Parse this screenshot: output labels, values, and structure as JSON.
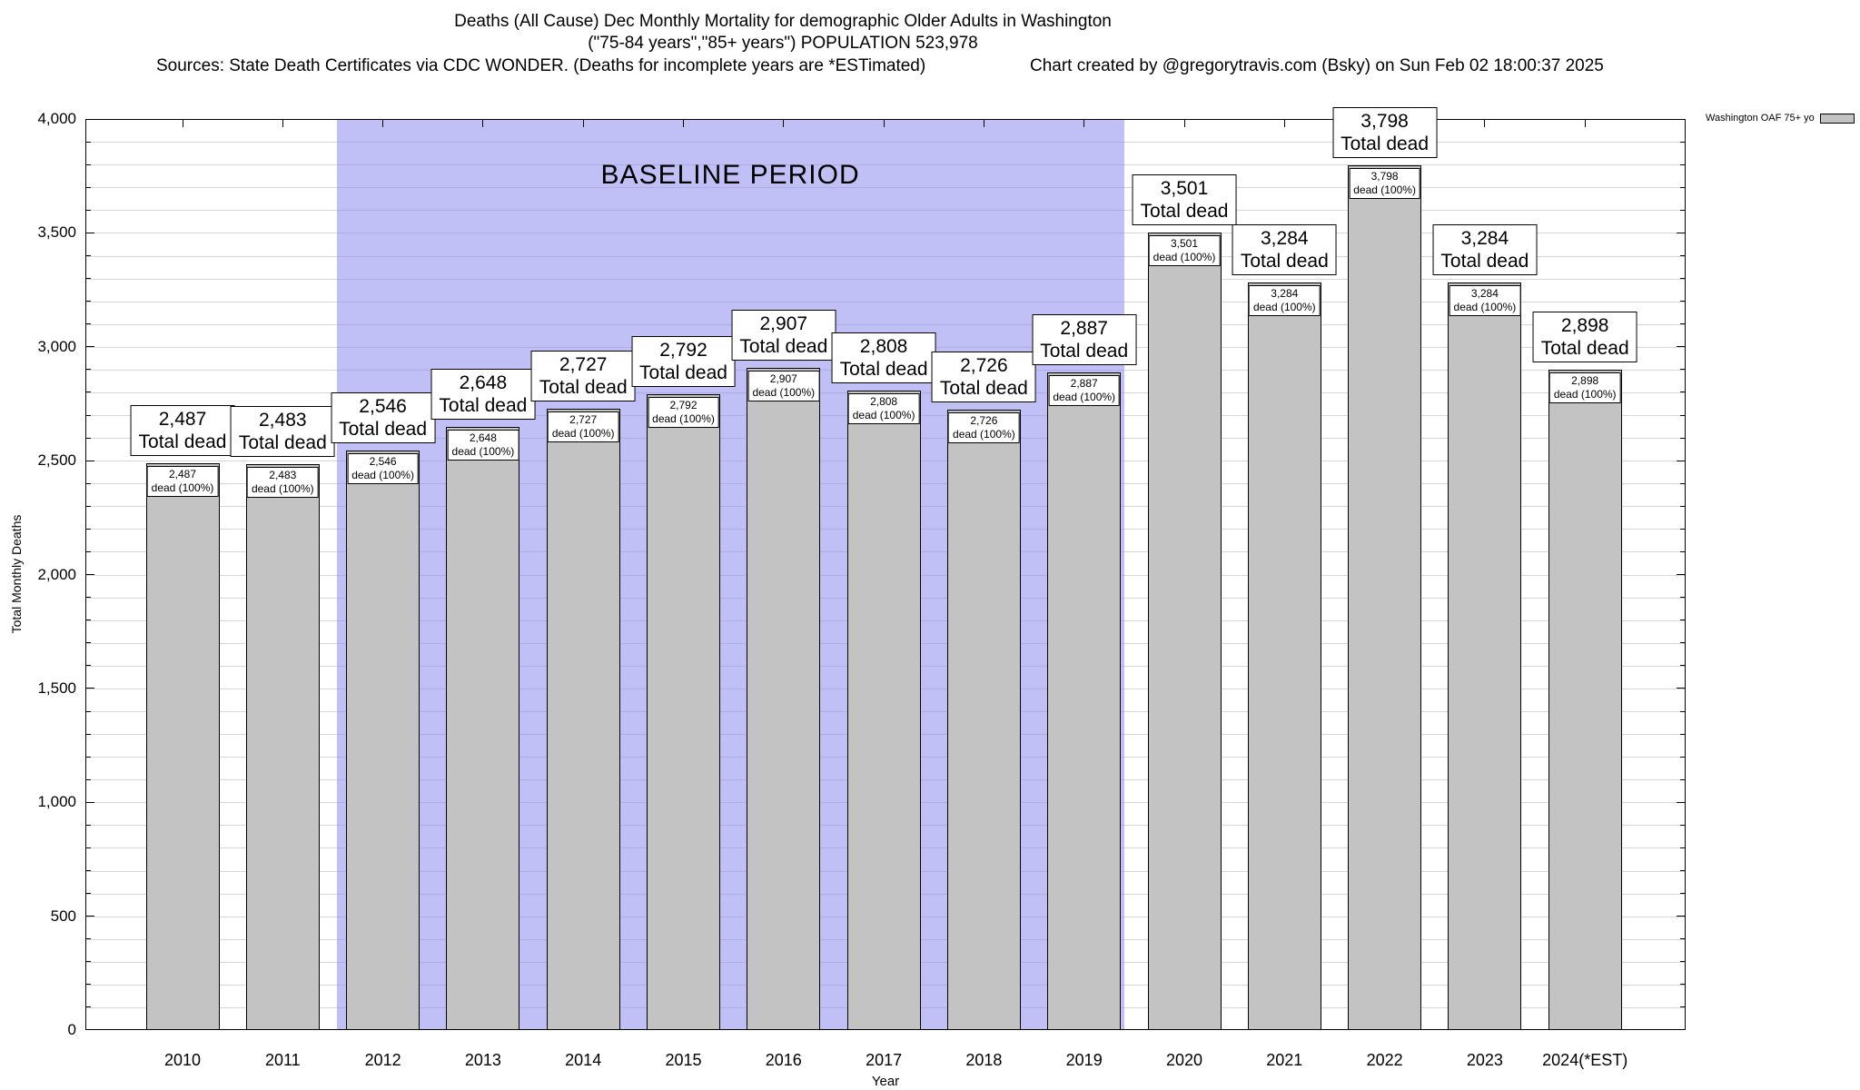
{
  "header": {
    "title_line1": "Deaths (All Cause) Dec Monthly Mortality for demographic Older Adults in Washington",
    "title_line2": "(\"75-84 years\",\"85+ years\") POPULATION 523,978",
    "sources": "Sources: State Death Certificates via CDC WONDER. (Deaths for incomplete years are *ESTimated)",
    "credit": "Chart created by @gregorytravis.com (Bsky) on Sun Feb 02 18:00:37 2025"
  },
  "chart_data": {
    "type": "bar",
    "title": "Deaths (All Cause) Dec Monthly Mortality for demographic Older Adults in Washington",
    "subtitle": "(\"75-84 years\",\"85+ years\") POPULATION 523,978",
    "xlabel": "Year",
    "ylabel": "Total Monthly Deaths",
    "ylim": [
      0,
      4000
    ],
    "ytick_step": 500,
    "grid_step": 100,
    "grid": true,
    "legend_position": "top-right",
    "categories": [
      "2010",
      "2011",
      "2012",
      "2013",
      "2014",
      "2015",
      "2016",
      "2017",
      "2018",
      "2019",
      "2020",
      "2021",
      "2022",
      "2023",
      "2024(*EST)"
    ],
    "values": [
      2487,
      2483,
      2546,
      2648,
      2727,
      2792,
      2907,
      2808,
      2726,
      2887,
      3501,
      3284,
      3798,
      3284,
      2898
    ],
    "bar_top_label_suffix": "Total dead",
    "bar_inner_label_suffix": "dead (100%)",
    "legend": {
      "label": "Washington OAF 75+ yo"
    },
    "baseline": {
      "label": "BASELINE PERIOD",
      "start_category": "2012",
      "end_category": "2019",
      "color": "#b9b9f6"
    },
    "colors": {
      "bar_fill": "#c3c3c3",
      "bar_border": "#000000",
      "baseline_region": "#8c8cf0",
      "grid": "#d6d6d6"
    }
  }
}
